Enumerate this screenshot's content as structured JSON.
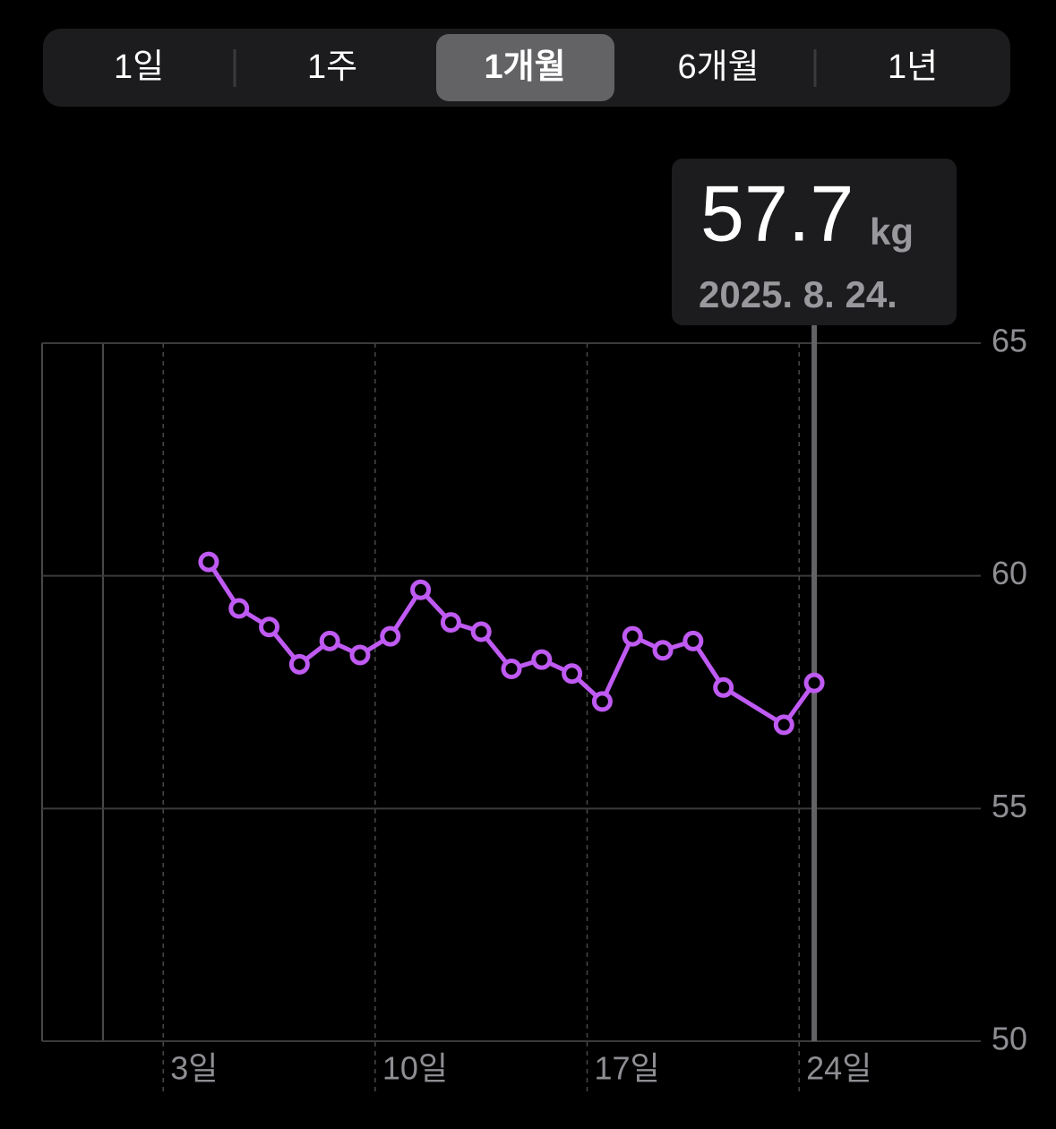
{
  "segments": [
    "1일",
    "1주",
    "1개월",
    "6개월",
    "1년"
  ],
  "selected_segment": "1개월",
  "callout": {
    "value": "57.7",
    "unit": "kg",
    "date": "2025. 8. 24."
  },
  "chart_data": {
    "type": "line",
    "x": [
      4.5,
      5.5,
      6.5,
      7.5,
      8.5,
      9.5,
      10.5,
      11.5,
      12.5,
      13.5,
      14.5,
      15.5,
      16.5,
      17.5,
      18.5,
      19.5,
      20.5,
      21.5,
      23.5,
      24.5
    ],
    "series": [
      {
        "color": "#bf5af2",
        "values": [
          60.3,
          59.3,
          58.9,
          58.1,
          58.6,
          58.3,
          58.7,
          59.7,
          59.0,
          58.8,
          58.0,
          58.2,
          57.9,
          57.3,
          58.7,
          58.4,
          58.6,
          57.6,
          56.8,
          57.7
        ]
      }
    ],
    "xlim": [
      -1,
      30
    ],
    "xticks": [
      {
        "value": 3,
        "label": "3일"
      },
      {
        "value": 10,
        "label": "10일"
      },
      {
        "value": 17,
        "label": "17일"
      },
      {
        "value": 24,
        "label": "24일"
      }
    ],
    "ylim": [
      50,
      65
    ],
    "yticks": [
      50,
      55,
      60,
      65
    ],
    "grid": true
  }
}
